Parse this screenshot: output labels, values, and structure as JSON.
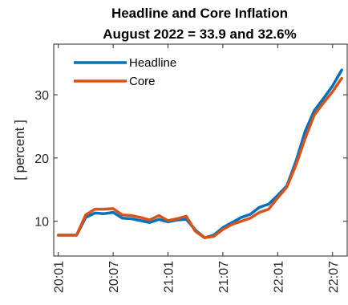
{
  "chart_data": {
    "type": "line",
    "title": [
      "Headline and Core Inflation",
      "August 2022 = 33.9 and 32.6%"
    ],
    "xlabel": "",
    "ylabel": "[ percent ]",
    "x_tick_labels": [
      "20:01",
      "20:07",
      "21:01",
      "21:07",
      "22:01",
      "22:07"
    ],
    "x_tick_months": [
      1,
      7,
      13,
      19,
      25,
      31
    ],
    "xlim": [
      0.5,
      32.6
    ],
    "yticks": [
      10,
      20,
      30
    ],
    "ylim": [
      4.5,
      38
    ],
    "grid": false,
    "legend_position": "top-left",
    "x": [
      1,
      2,
      3,
      4,
      5,
      6,
      7,
      8,
      9,
      10,
      11,
      12,
      13,
      14,
      15,
      16,
      17,
      18,
      19,
      20,
      21,
      22,
      23,
      24,
      25,
      26,
      27,
      28,
      29,
      30,
      31,
      32
    ],
    "series": [
      {
        "name": "Headline",
        "color": "#0072BD",
        "values": [
          7.8,
          7.8,
          7.8,
          10.6,
          11.3,
          11.2,
          11.4,
          10.5,
          10.4,
          10.1,
          9.8,
          10.3,
          9.9,
          10.2,
          10.3,
          8.6,
          7.4,
          7.8,
          9.0,
          9.8,
          10.6,
          11.1,
          12.2,
          12.7,
          14.1,
          15.6,
          19.5,
          24.2,
          27.5,
          29.4,
          31.4,
          33.9
        ]
      },
      {
        "name": "Core",
        "color": "#D95319",
        "values": [
          7.8,
          7.8,
          7.8,
          11.0,
          11.9,
          11.9,
          12.0,
          11.0,
          10.9,
          10.6,
          10.2,
          10.9,
          10.1,
          10.4,
          10.8,
          8.4,
          7.4,
          7.6,
          8.7,
          9.5,
          10.0,
          10.5,
          11.4,
          11.9,
          13.7,
          15.4,
          18.9,
          23.1,
          26.8,
          28.7,
          30.5,
          32.6
        ]
      }
    ]
  }
}
